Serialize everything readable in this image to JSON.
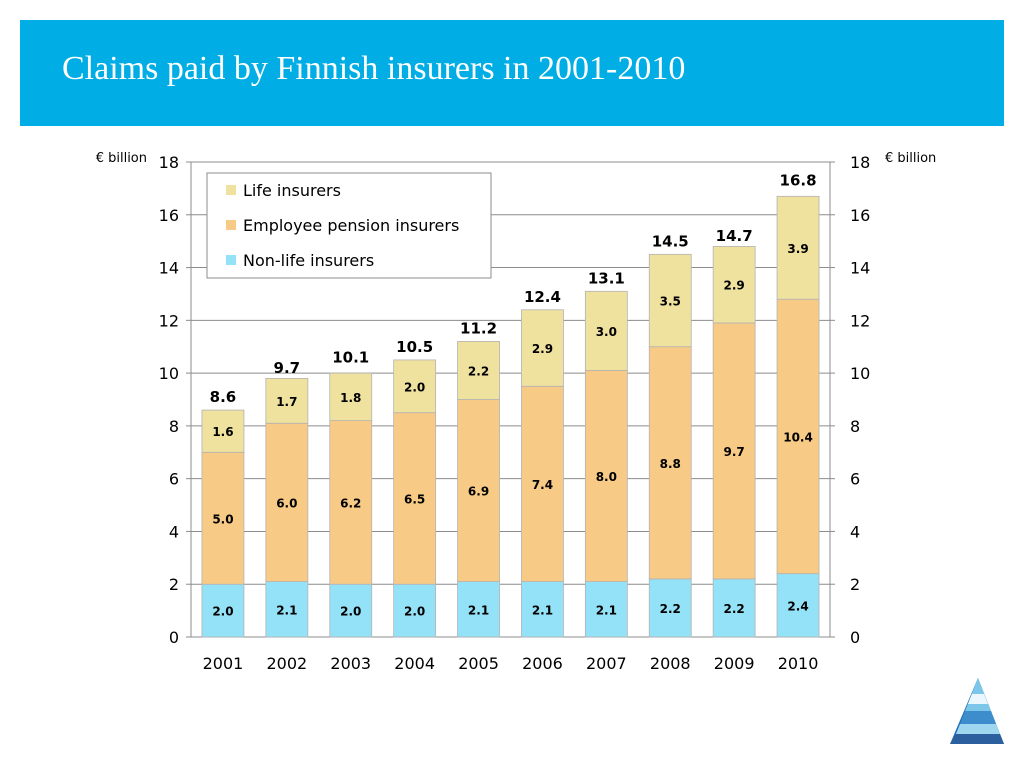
{
  "page": {
    "title": "Claims paid by Finnish insurers in 2001-2010",
    "title_band_color": "#00ade5"
  },
  "logo": {
    "icon": "layered-triangle-logo-icon"
  },
  "chart_data": {
    "type": "bar",
    "stacked": true,
    "categories": [
      "2001",
      "2002",
      "2003",
      "2004",
      "2005",
      "2006",
      "2007",
      "2008",
      "2009",
      "2010"
    ],
    "series": [
      {
        "name": "Non-life insurers",
        "color": "#94e2f7",
        "values": [
          2.0,
          2.1,
          2.0,
          2.0,
          2.1,
          2.1,
          2.1,
          2.2,
          2.2,
          2.4
        ]
      },
      {
        "name": "Employee pension insurers",
        "color": "#f7ca85",
        "values": [
          5.0,
          6.0,
          6.2,
          6.5,
          6.9,
          7.4,
          8.0,
          8.8,
          9.7,
          10.4
        ]
      },
      {
        "name": "Life insurers",
        "color": "#efe19e",
        "values": [
          1.6,
          1.7,
          1.8,
          2.0,
          2.2,
          2.9,
          3.0,
          3.5,
          2.9,
          3.9
        ]
      }
    ],
    "totals": [
      8.6,
      9.7,
      10.1,
      10.5,
      11.2,
      12.4,
      13.1,
      14.5,
      14.7,
      16.8
    ],
    "ylabel_left": "€ billion",
    "ylabel_right": "€ billion",
    "ylim": [
      0,
      18
    ],
    "yticks": [
      0,
      2,
      4,
      6,
      8,
      10,
      12,
      14,
      16,
      18
    ],
    "grid": true,
    "legend_position": "top-left",
    "legend_order": [
      "Life insurers",
      "Employee pension insurers",
      "Non-life insurers"
    ]
  }
}
